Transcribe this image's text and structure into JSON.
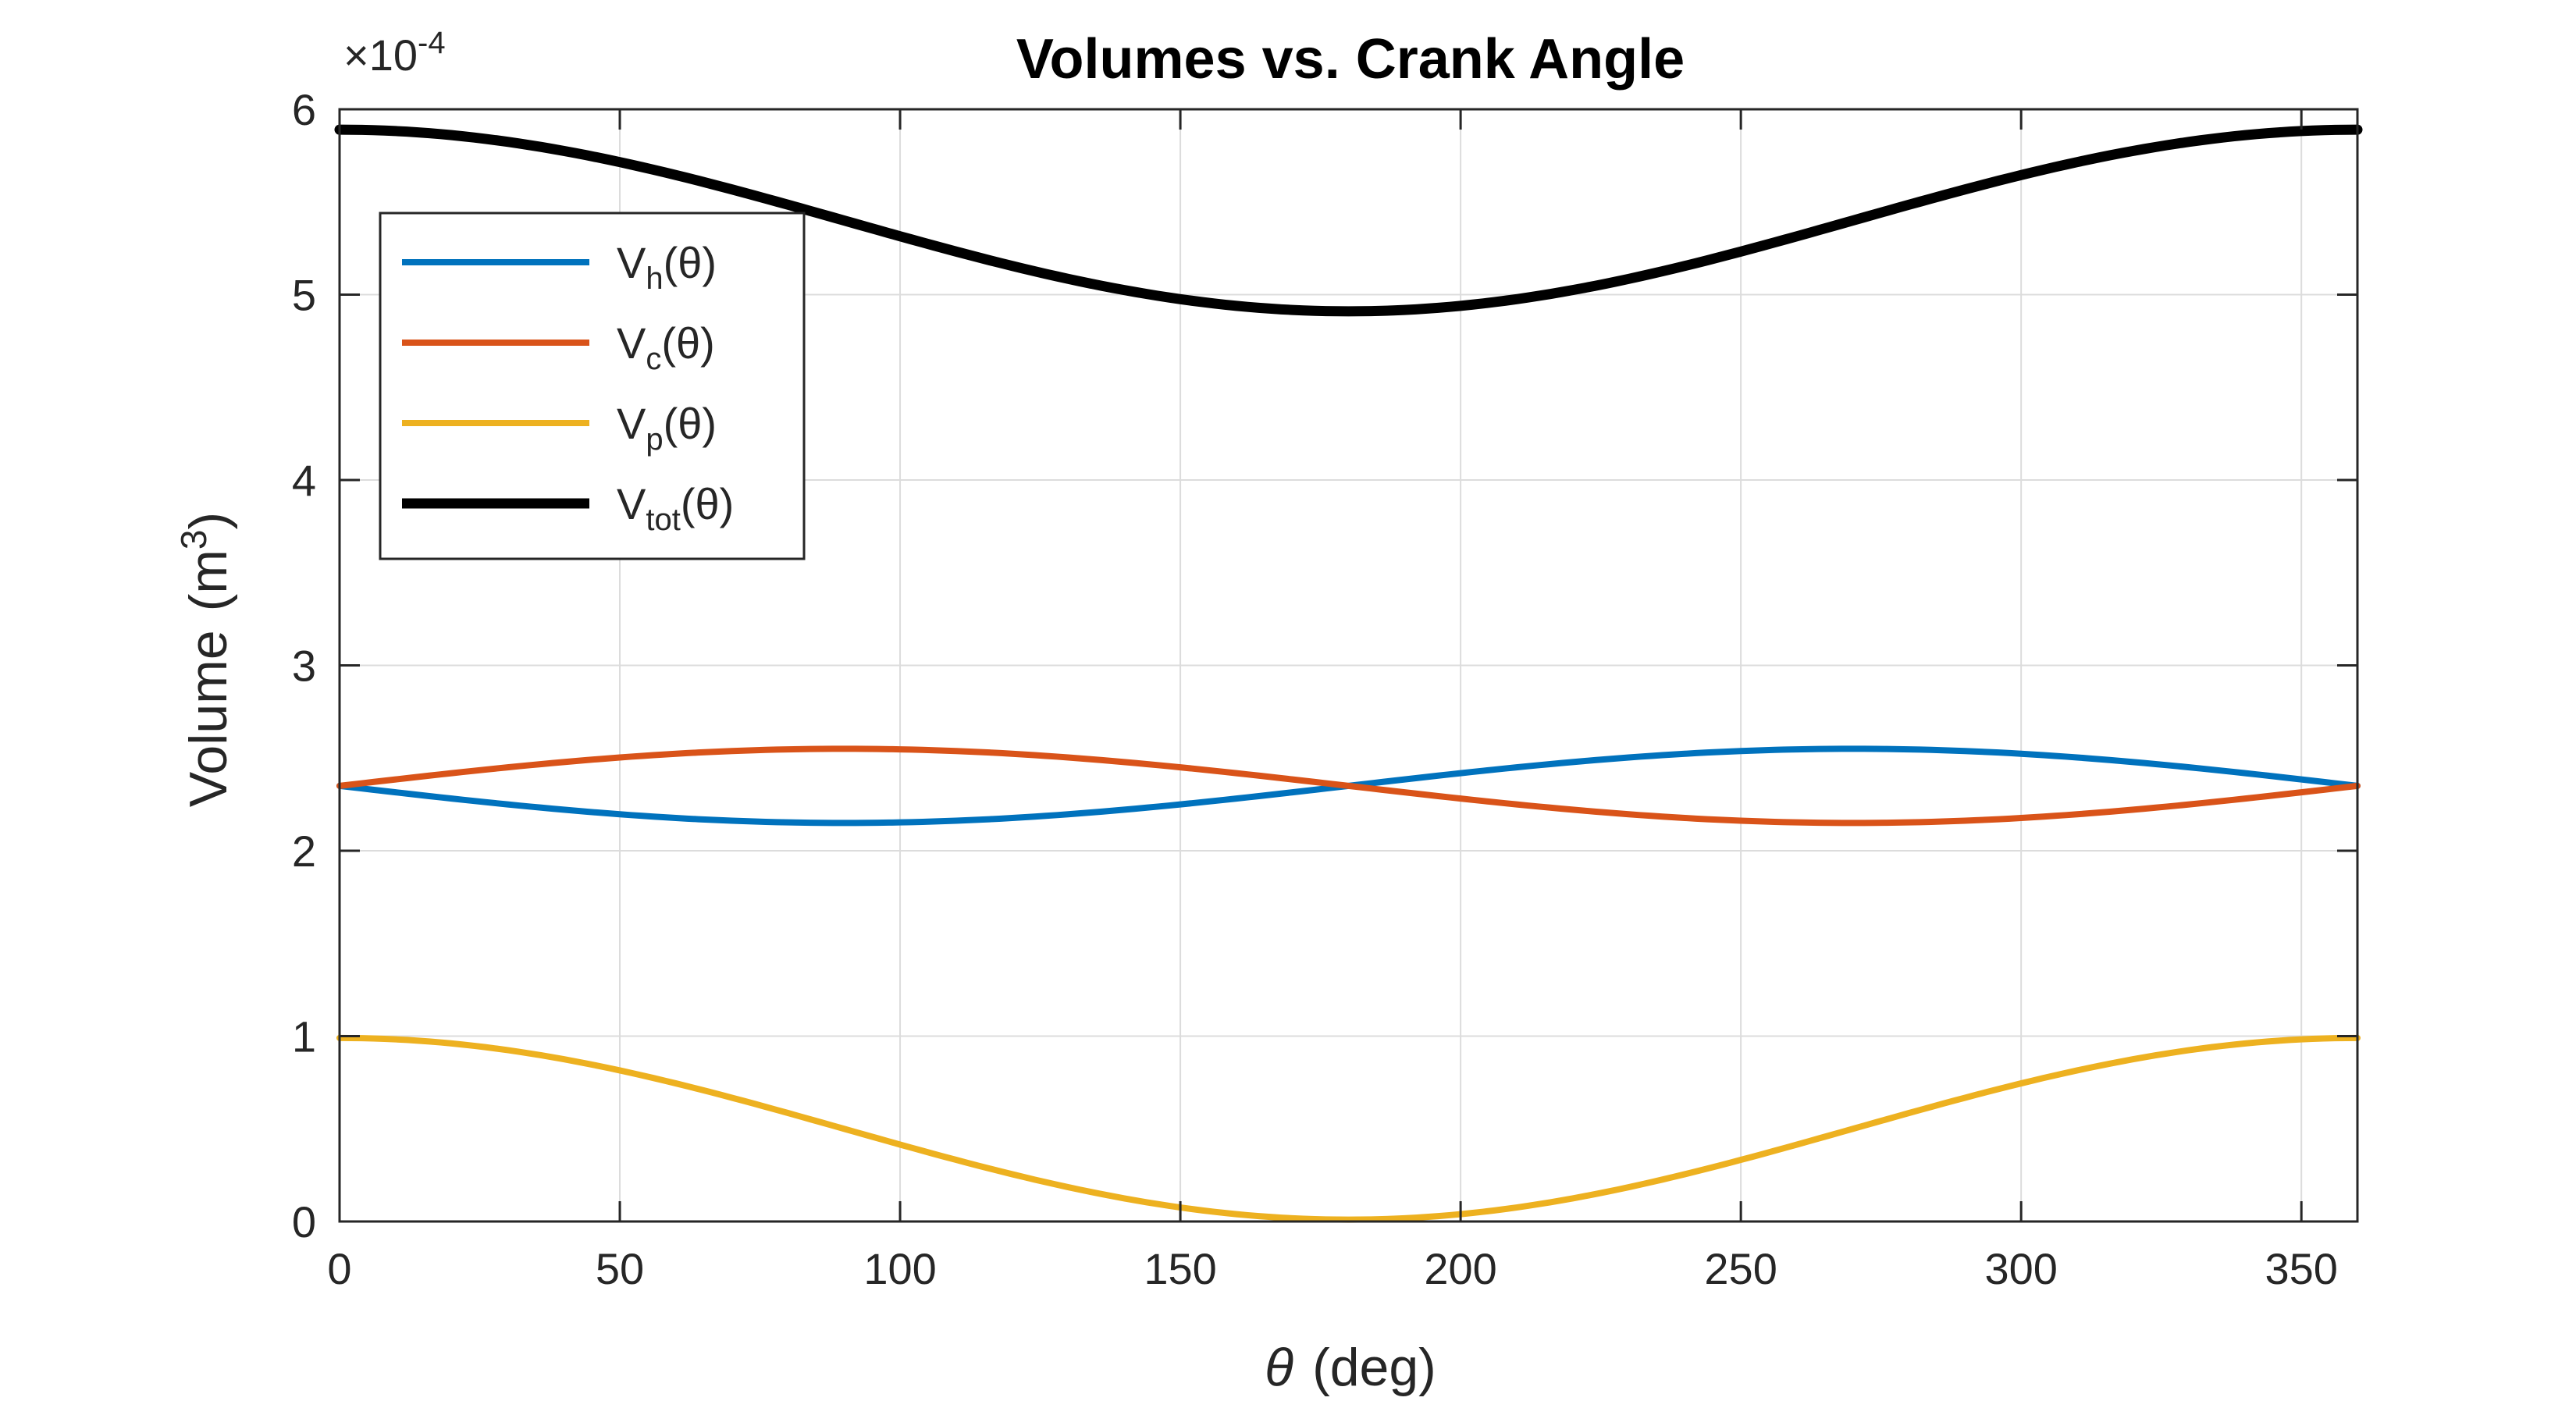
{
  "chart_data": {
    "type": "line",
    "title": "Volumes vs. Crank Angle",
    "xlabel": {
      "symbol": "θ",
      "unit": "(deg)"
    },
    "ylabel": {
      "text": "Volume",
      "unit_base": "(m",
      "unit_exp": "3",
      "unit_close": ")"
    },
    "y_exponent": {
      "prefix": "×10",
      "power": "-4"
    },
    "xlim": [
      0,
      360
    ],
    "ylim": [
      0,
      6
    ],
    "xticks": [
      0,
      50,
      100,
      150,
      200,
      250,
      300,
      350
    ],
    "yticks": [
      0,
      1,
      2,
      3,
      4,
      5,
      6
    ],
    "grid": true,
    "legend_position": "top-left",
    "series": [
      {
        "name": "V_h(θ)",
        "label_main": "V",
        "label_sub": "h",
        "label_arg": "(θ)",
        "color": "#0072BD",
        "model": {
          "offset": 2.35,
          "amplitude": 0.2,
          "fn": "-sin"
        },
        "line_weight": "normal"
      },
      {
        "name": "V_c(θ)",
        "label_main": "V",
        "label_sub": "c",
        "label_arg": "(θ)",
        "color": "#D95319",
        "model": {
          "offset": 2.35,
          "amplitude": 0.2,
          "fn": "sin"
        },
        "line_weight": "normal"
      },
      {
        "name": "V_p(θ)",
        "label_main": "V",
        "label_sub": "p",
        "label_arg": "(θ)",
        "color": "#EDB120",
        "model": {
          "offset": 0.5,
          "amplitude": 0.49,
          "fn": "cos"
        },
        "line_weight": "normal"
      },
      {
        "name": "V_tot(θ)",
        "label_main": "V",
        "label_sub": "tot",
        "label_arg": "(θ)",
        "color": "#000000",
        "model": {
          "offset": 5.4,
          "amplitude": 0.49,
          "fn": "cos"
        },
        "line_weight": "bold"
      }
    ]
  }
}
